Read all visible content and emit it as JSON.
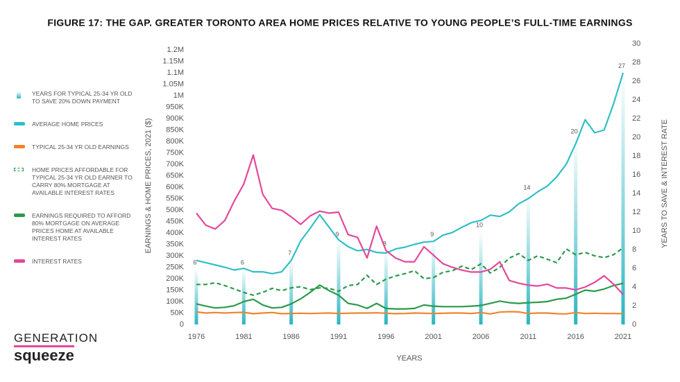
{
  "chart_data": {
    "type": "line",
    "title": "FIGURE 17: THE GAP. GREATER TORONTO AREA HOME PRICES RELATIVE TO YOUNG PEOPLE’S FULL-TIME EARNINGS",
    "x_label": "YEARS",
    "y_label": "EARNINGS & HOME PRICES, 2021 ($)",
    "y2_label": "YEARS TO SAVE & INTEREST RATE",
    "x": [
      1976,
      1977,
      1978,
      1979,
      1980,
      1981,
      1982,
      1983,
      1984,
      1985,
      1986,
      1987,
      1988,
      1989,
      1990,
      1991,
      1992,
      1993,
      1994,
      1995,
      1996,
      1997,
      1998,
      1999,
      2000,
      2001,
      2002,
      2003,
      2004,
      2005,
      2006,
      2007,
      2008,
      2009,
      2010,
      2011,
      2012,
      2013,
      2014,
      2015,
      2016,
      2017,
      2018,
      2019,
      2020,
      2021
    ],
    "xlim": [
      1976,
      2021
    ],
    "xticks": [
      1976,
      1981,
      1986,
      1991,
      1996,
      2001,
      2006,
      2011,
      2016,
      2021
    ],
    "ylim": [
      0,
      1200000
    ],
    "yticks": [
      0,
      {
        "value": 50000,
        "label": "50K"
      },
      {
        "value": 100000,
        "label": "100K"
      },
      {
        "value": 150000,
        "label": "150K"
      },
      {
        "value": 200000,
        "label": "200K"
      },
      {
        "value": 250000,
        "label": "250K"
      },
      {
        "value": 300000,
        "label": "300K"
      },
      {
        "value": 350000,
        "label": "350K"
      },
      {
        "value": 400000,
        "label": "400K"
      },
      {
        "value": 450000,
        "label": "450K"
      },
      {
        "value": 500000,
        "label": "500K"
      },
      {
        "value": 550000,
        "label": "550K"
      },
      {
        "value": 600000,
        "label": "600K"
      },
      {
        "value": 650000,
        "label": "650K"
      },
      {
        "value": 700000,
        "label": "700K"
      },
      {
        "value": 750000,
        "label": "750K"
      },
      {
        "value": 800000,
        "label": "800K"
      },
      {
        "value": 850000,
        "label": "850K"
      },
      {
        "value": 900000,
        "label": "900K"
      },
      {
        "value": 950000,
        "label": "950K"
      },
      {
        "value": 1000000,
        "label": "1M"
      },
      {
        "value": 1050000,
        "label": "1.05M"
      },
      {
        "value": 1100000,
        "label": "1.1M"
      },
      {
        "value": 1150000,
        "label": "1.15M"
      },
      {
        "value": 1200000,
        "label": "1.2M"
      }
    ],
    "y2lim": [
      0,
      30
    ],
    "y2ticks": [
      0,
      2,
      4,
      6,
      8,
      10,
      12,
      14,
      16,
      18,
      20,
      22,
      24,
      26,
      28,
      30
    ],
    "bar_series": {
      "name": "YEARS FOR TYPICAL 25-34 YR OLD TO SAVE 20% DOWN PAYMENT",
      "color": "#29b5c3",
      "axis": "y2",
      "x": [
        1976,
        1981,
        1986,
        1991,
        1996,
        2001,
        2006,
        2011,
        2016,
        2021
      ],
      "values": [
        6,
        6,
        7,
        9,
        8,
        9,
        10,
        14,
        20,
        27
      ]
    },
    "series": [
      {
        "name": "AVERAGE HOME PRICES",
        "color": "#2ebfc6",
        "values": [
          280000,
          270000,
          260000,
          250000,
          238000,
          245000,
          230000,
          230000,
          222000,
          230000,
          280000,
          365000,
          420000,
          480000,
          425000,
          370000,
          340000,
          322000,
          328000,
          315000,
          312000,
          330000,
          338000,
          350000,
          360000,
          363000,
          390000,
          402000,
          425000,
          445000,
          455000,
          478000,
          472000,
          492000,
          528000,
          550000,
          580000,
          605000,
          645000,
          700000,
          790000,
          895000,
          838000,
          850000,
          965000,
          1100000
        ]
      },
      {
        "name": "TYPICAL 25-34 YR OLD EARNINGS",
        "color": "#f0842c",
        "values": [
          55000,
          50000,
          52000,
          50000,
          52000,
          53000,
          47000,
          50000,
          52000,
          47000,
          48000,
          49000,
          48000,
          49000,
          50000,
          48000,
          49000,
          50000,
          50000,
          51000,
          49000,
          47000,
          48000,
          50000,
          49000,
          48000,
          49000,
          50000,
          50000,
          48000,
          52000,
          46000,
          54000,
          56000,
          55000,
          48000,
          50000,
          50000,
          47000,
          46000,
          52000,
          48000,
          49000,
          48000,
          48000,
          47000
        ]
      },
      {
        "name": "HOME PRICES AFFORDABLE FOR TYPICAL 25-34 YR OLD EARNER TO CARRY 80% MORTGAGE AT AVAILABLE INTEREST RATES",
        "color": "#2a9a4a",
        "line_style": "dashed",
        "values": [
          175000,
          175000,
          182000,
          170000,
          155000,
          140000,
          128000,
          140000,
          158000,
          148000,
          160000,
          165000,
          152000,
          160000,
          158000,
          145000,
          170000,
          175000,
          215000,
          175000,
          198000,
          212000,
          222000,
          235000,
          200000,
          205000,
          228000,
          235000,
          255000,
          240000,
          265000,
          225000,
          250000,
          290000,
          310000,
          280000,
          300000,
          285000,
          270000,
          330000,
          305000,
          315000,
          300000,
          292000,
          305000,
          335000
        ]
      },
      {
        "name": "EARNINGS REQUIRED TO AFFORD 80% MORTGAGE ON AVERAGE PRICES HOME AT AVAILABLE INTEREST RATES",
        "color": "#2a9a4a",
        "values": [
          90000,
          80000,
          72000,
          75000,
          82000,
          100000,
          110000,
          85000,
          72000,
          75000,
          90000,
          112000,
          140000,
          172000,
          148000,
          128000,
          92000,
          85000,
          70000,
          92000,
          70000,
          68000,
          68000,
          70000,
          85000,
          80000,
          78000,
          78000,
          78000,
          80000,
          83000,
          92000,
          102000,
          95000,
          92000,
          95000,
          97000,
          100000,
          110000,
          115000,
          132000,
          150000,
          145000,
          155000,
          170000,
          180000
        ]
      },
      {
        "name": "INTEREST RATES",
        "color": "#e4479b",
        "axis": "y2",
        "values": [
          11.9,
          10.6,
          10.2,
          11.1,
          13.2,
          15,
          18.1,
          13.9,
          12.4,
          12.2,
          11.5,
          10.7,
          11.6,
          12.1,
          11.9,
          12,
          9.6,
          9.3,
          7.1,
          10.5,
          7.9,
          7.1,
          6.7,
          6.7,
          8.3,
          7.4,
          6.5,
          6.1,
          5.8,
          5.6,
          5.6,
          5.9,
          6.7,
          4.7,
          4.4,
          4.2,
          4.1,
          4.3,
          3.9,
          3.9,
          3.7,
          4,
          4.5,
          5.2,
          4.3,
          3.2
        ]
      }
    ]
  },
  "logo": {
    "line1": "GENERATION",
    "line2": "squeeze"
  }
}
